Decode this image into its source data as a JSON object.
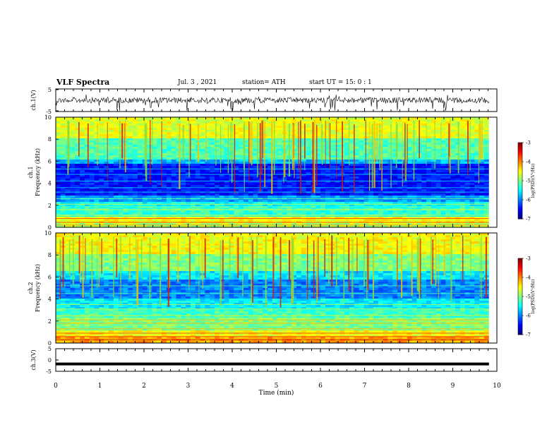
{
  "header": {
    "title": "VLF Spectra",
    "date": "Jul. 3 , 2021",
    "station": "station= ATH",
    "start": "start UT = 15: 0 : 1"
  },
  "chart_data": [
    {
      "type": "line",
      "panel": "ch1-waveform",
      "ylabel": "ch.1(V)",
      "ylim": [
        -5,
        5
      ],
      "yticks": [
        "5",
        "-5"
      ],
      "description_values": "noisy waveform centered near 0 V with spikes to about +5/-4 V"
    },
    {
      "type": "heatmap",
      "panel": "ch1-spectrogram",
      "ylabel_lines": [
        "ch.1",
        "Frequency (kHz)"
      ],
      "ylim": [
        0,
        10
      ],
      "yticks": [
        "0",
        "2",
        "4",
        "6",
        "8",
        "10"
      ],
      "colorbar": {
        "label": "log(PSD)(V²/Hz)",
        "ticks": [
          "-3",
          "-4",
          "-5",
          "-6",
          "-7"
        ],
        "range": [
          -7,
          -3
        ],
        "colormap": "jet"
      }
    },
    {
      "type": "heatmap",
      "panel": "ch2-spectrogram",
      "ylabel_lines": [
        "ch.2",
        "Frequency (kHz)"
      ],
      "ylim": [
        0,
        10
      ],
      "yticks": [
        "0",
        "2",
        "4",
        "6",
        "8",
        "10"
      ],
      "colorbar": {
        "label": "log(PSD)(V²/Hz)",
        "ticks": [
          "-3",
          "-4",
          "-5",
          "-6",
          "-7"
        ],
        "range": [
          -7,
          -3
        ],
        "colormap": "jet"
      }
    },
    {
      "type": "line",
      "panel": "ch3-waveform",
      "ylabel": "ch.3(V)",
      "ylim": [
        -5,
        5
      ],
      "yticks": [
        "5",
        "0",
        "-5"
      ],
      "values_constant": -0.5
    }
  ],
  "xaxis": {
    "label": "Time (min)",
    "xlim": [
      0,
      10
    ],
    "ticks": [
      "0",
      "1",
      "2",
      "3",
      "4",
      "5",
      "6",
      "7",
      "8",
      "9",
      "10"
    ],
    "data_end": 9.82
  },
  "colors": {
    "line": "#000000",
    "background": "#ffffff"
  }
}
